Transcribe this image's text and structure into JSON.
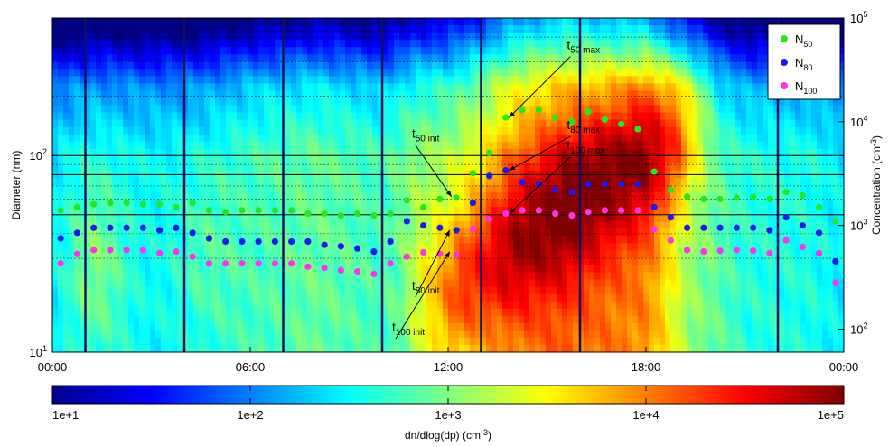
{
  "chart_data": {
    "type": "heatmap",
    "ylabel": "Diameter (nm)",
    "y2label_main": "Concentration (cm",
    "y2label_exp": "-3",
    "y2label_end": ")",
    "colorbar_label_main": "dn/dlog(dp) (cm",
    "colorbar_label_exp": "-3",
    "colorbar_label_end": ")",
    "x_ticks": [
      "00:00",
      "06:00",
      "12:00",
      "18:00",
      "00:00"
    ],
    "x_tick_hours": [
      0,
      6,
      12,
      18,
      24
    ],
    "xlim_hours": [
      0,
      24
    ],
    "ylim_nm": [
      10,
      500
    ],
    "y_scale": "log",
    "y_ticks": [
      {
        "base": "10",
        "exp": "1"
      },
      {
        "base": "10",
        "exp": "2"
      }
    ],
    "y_tick_values": [
      10,
      100
    ],
    "y2_scale": "log",
    "y2lim": [
      60,
      100000
    ],
    "y2_ticks": [
      {
        "base": "10",
        "exp": "2"
      },
      {
        "base": "10",
        "exp": "3"
      },
      {
        "base": "10",
        "exp": "4"
      },
      {
        "base": "10",
        "exp": "5"
      }
    ],
    "y2_tick_values": [
      100,
      1000,
      10000,
      100000
    ],
    "colorbar_ticks": [
      "1e+1",
      "1e+2",
      "1e+3",
      "1e+4",
      "1e+5"
    ],
    "colorbar_range": [
      10,
      100000
    ],
    "colorbar_scale": "log",
    "reference_lines_nm": [
      50,
      80,
      100
    ],
    "event_lines_hours": [
      1.0,
      4.0,
      7.0,
      10.0,
      13.0,
      16.0,
      22.0
    ],
    "legend_position": "top-right",
    "colors": {
      "N50": "#22e822",
      "N80": "#1a1aee",
      "N100": "#ff33ee",
      "event_line": "#101060"
    },
    "series": [
      {
        "name": "N50",
        "sub": "50",
        "color": "#22e822",
        "x_hours": [
          0.25,
          0.75,
          1.25,
          1.75,
          2.25,
          2.75,
          3.25,
          3.75,
          4.25,
          4.75,
          5.25,
          5.75,
          6.25,
          6.75,
          7.25,
          7.75,
          8.25,
          8.75,
          9.25,
          9.75,
          10.25,
          10.75,
          11.25,
          11.75,
          12.25,
          12.75,
          13.25,
          13.75,
          14.25,
          14.75,
          15.25,
          15.75,
          16.25,
          16.75,
          17.25,
          17.75,
          18.25,
          18.75,
          19.25,
          19.75,
          20.25,
          20.75,
          21.25,
          21.75,
          22.25,
          22.75,
          23.25,
          23.75
        ],
        "values": [
          1400,
          1500,
          1600,
          1650,
          1650,
          1600,
          1600,
          1500,
          1650,
          1400,
          1350,
          1400,
          1400,
          1400,
          1400,
          1300,
          1300,
          1250,
          1300,
          1250,
          1300,
          1750,
          1500,
          1800,
          1850,
          3200,
          5000,
          11000,
          13000,
          13000,
          11000,
          10000,
          12500,
          10500,
          9500,
          8500,
          3300,
          2200,
          1900,
          1800,
          1800,
          1850,
          1900,
          1800,
          2100,
          1950,
          1500,
          1100
        ]
      },
      {
        "name": "N80",
        "sub": "80",
        "color": "#1a1aee",
        "x_hours": [
          0.25,
          0.75,
          1.25,
          1.75,
          2.25,
          2.75,
          3.25,
          3.75,
          4.25,
          4.75,
          5.25,
          5.75,
          6.25,
          6.75,
          7.25,
          7.75,
          8.25,
          8.75,
          9.25,
          9.75,
          10.25,
          10.75,
          11.25,
          11.75,
          12.25,
          12.75,
          13.25,
          13.75,
          14.25,
          14.75,
          15.25,
          15.75,
          16.25,
          16.75,
          17.25,
          17.75,
          18.25,
          18.75,
          19.25,
          19.75,
          20.25,
          20.75,
          21.25,
          21.75,
          22.25,
          22.75,
          23.25,
          23.75
        ],
        "values": [
          750,
          850,
          950,
          950,
          950,
          950,
          900,
          950,
          850,
          750,
          700,
          700,
          700,
          700,
          700,
          700,
          650,
          630,
          600,
          560,
          700,
          1100,
          1000,
          950,
          900,
          1650,
          3000,
          3400,
          2600,
          2500,
          2200,
          2100,
          2500,
          2500,
          2500,
          2500,
          1500,
          1200,
          950,
          950,
          950,
          950,
          950,
          900,
          1200,
          1000,
          850,
          450
        ]
      },
      {
        "name": "N100",
        "sub": "100",
        "color": "#ff33ee",
        "x_hours": [
          0.25,
          0.75,
          1.25,
          1.75,
          2.25,
          2.75,
          3.25,
          3.75,
          4.25,
          4.75,
          5.25,
          5.75,
          6.25,
          6.75,
          7.25,
          7.75,
          8.25,
          8.75,
          9.25,
          9.75,
          10.25,
          10.75,
          11.25,
          11.75,
          12.25,
          12.75,
          13.25,
          13.75,
          14.25,
          14.75,
          15.25,
          15.75,
          16.25,
          16.75,
          17.25,
          17.75,
          18.25,
          18.75,
          19.25,
          19.75,
          20.25,
          20.75,
          21.25,
          21.75,
          22.25,
          22.75,
          23.25,
          23.75
        ],
        "values": [
          430,
          530,
          580,
          580,
          580,
          580,
          540,
          560,
          500,
          430,
          430,
          430,
          430,
          430,
          430,
          400,
          390,
          370,
          360,
          340,
          430,
          500,
          550,
          530,
          520,
          930,
          1150,
          1300,
          1400,
          1400,
          1300,
          1250,
          1350,
          1400,
          1400,
          1400,
          920,
          720,
          580,
          560,
          570,
          580,
          570,
          540,
          720,
          620,
          540,
          280
        ]
      }
    ],
    "annotations": [
      {
        "base": "t",
        "sub": "50 max",
        "time_hours": 14.75,
        "value": 19000,
        "label_x_hours": 15.6,
        "label_y_value": 50000,
        "target": "N50",
        "target_hours": 13.85,
        "target_value": 11000
      },
      {
        "base": "t",
        "sub": "80 max",
        "time_hours": 15.0,
        "value": 6000,
        "label_x_hours": 15.6,
        "label_y_value": 8500,
        "target": "N80",
        "target_hours": 13.85,
        "target_value": 3400
      },
      {
        "base": "t",
        "sub": "100 max",
        "time_hours": 15.0,
        "value": 4300,
        "label_x_hours": 15.6,
        "label_y_value": 5400,
        "target": "N100",
        "target_hours": 13.85,
        "target_value": 1300
      },
      {
        "base": "t",
        "sub": "50 init",
        "time_hours": 10.9,
        "value": 7000,
        "label_x_hours": 10.9,
        "label_y_value": 7000,
        "target": "N50",
        "target_hours": 12.1,
        "target_value": 1900
      },
      {
        "base": "t",
        "sub": "80 init",
        "time_hours": 10.9,
        "value": 240,
        "label_x_hours": 10.9,
        "label_y_value": 240,
        "target": "N80",
        "target_hours": 12.05,
        "target_value": 900
      },
      {
        "base": "t",
        "sub": "100 init",
        "time_hours": 10.3,
        "value": 95,
        "label_x_hours": 10.3,
        "label_y_value": 95,
        "target": "N100",
        "target_hours": 12.05,
        "target_value": 560
      }
    ]
  }
}
